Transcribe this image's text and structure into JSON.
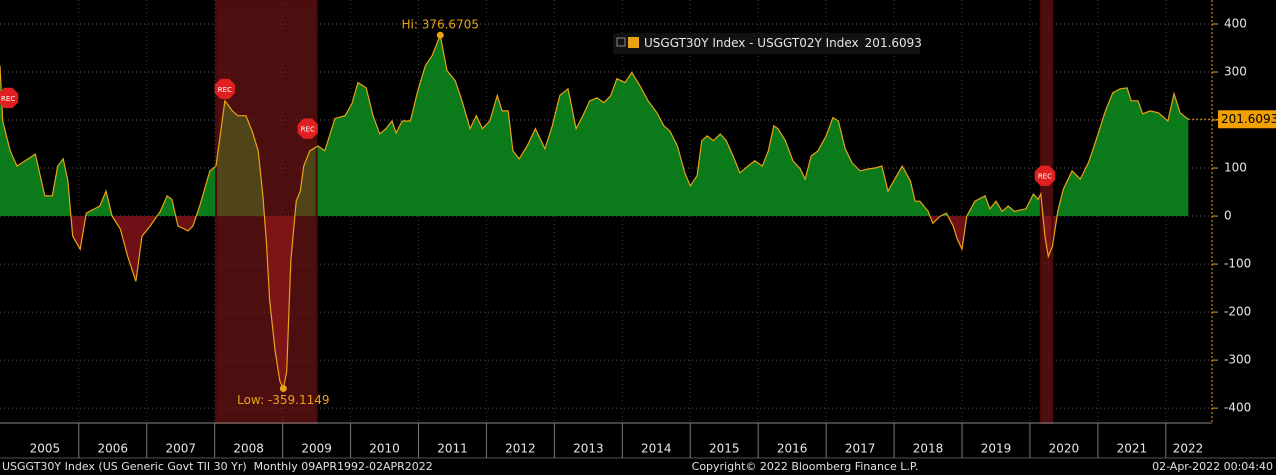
{
  "chart_data": {
    "type": "area",
    "series": [
      {
        "name": "USGGT30Y Index - USGGT02Y Index",
        "color": "#e8a317",
        "values": [
          313,
          198,
          136,
          104,
          129,
          42,
          42,
          104,
          119,
          73,
          -42,
          -69,
          6,
          21,
          52,
          0,
          -27,
          -84,
          -136,
          -42,
          -21,
          10,
          42,
          35,
          -21,
          -31,
          -21,
          21,
          94,
          104,
          167,
          240,
          219,
          209,
          209,
          177,
          136,
          42,
          -52,
          -177,
          -282,
          -344,
          -359.1149,
          -324,
          -94,
          31,
          52,
          104,
          136,
          146,
          136,
          203,
          209,
          234,
          278,
          267,
          209,
          171,
          182,
          198,
          173,
          198,
          198,
          261,
          313,
          334,
          376.6705,
          303,
          282,
          240,
          182,
          209,
          182,
          198,
          251,
          219,
          219,
          136,
          119,
          146,
          182,
          140,
          188,
          251,
          265,
          182,
          209,
          240,
          246,
          236,
          251,
          286,
          278,
          299,
          271,
          240,
          215,
          188,
          177,
          146,
          90,
          63,
          84,
          157,
          167,
          157,
          171,
          157,
          125,
          90,
          104,
          115,
          104,
          136,
          188,
          182,
          157,
          115,
          98,
          77,
          125,
          136,
          167,
          205,
          198,
          140,
          111,
          94,
          98,
          100,
          104,
          52,
          77,
          104,
          73,
          31,
          31,
          10,
          -15,
          0,
          6,
          -21,
          -48,
          -69,
          0,
          31,
          42,
          15,
          31,
          10,
          21,
          10,
          15,
          46,
          35,
          46,
          -42,
          -84,
          -63,
          10,
          56,
          94,
          77,
          111,
          157,
          219,
          257,
          265,
          267,
          240,
          240,
          213,
          219,
          215,
          198,
          255,
          215,
          201.6093
        ]
      }
    ],
    "x": [
      2004.84,
      2004.88,
      2004.99,
      2005.09,
      2005.36,
      2005.5,
      2005.61,
      2005.69,
      2005.77,
      2005.84,
      2005.91,
      2006.02,
      2006.11,
      2006.31,
      2006.4,
      2006.49,
      2006.61,
      2006.72,
      2006.84,
      2006.93,
      2007.05,
      2007.2,
      2007.3,
      2007.37,
      2007.46,
      2007.61,
      2007.68,
      2007.78,
      2007.93,
      2008.02,
      2008.08,
      2008.15,
      2008.26,
      2008.34,
      2008.46,
      2008.55,
      2008.64,
      2008.71,
      2008.76,
      2008.81,
      2008.89,
      2008.96,
      2009.01,
      2009.06,
      2009.12,
      2009.2,
      2009.26,
      2009.31,
      2009.4,
      2009.52,
      2009.62,
      2009.77,
      2009.92,
      2010.02,
      2010.11,
      2010.23,
      2010.33,
      2010.43,
      2010.52,
      2010.61,
      2010.67,
      2010.76,
      2010.88,
      2010.99,
      2011.1,
      2011.2,
      2011.32,
      2011.42,
      2011.54,
      2011.64,
      2011.76,
      2011.85,
      2011.94,
      2012.05,
      2012.16,
      2012.23,
      2012.32,
      2012.39,
      2012.48,
      2012.6,
      2012.72,
      2012.86,
      2012.97,
      2013.08,
      2013.2,
      2013.32,
      2013.42,
      2013.52,
      2013.63,
      2013.73,
      2013.83,
      2013.92,
      2014.04,
      2014.14,
      2014.26,
      2014.38,
      2014.51,
      2014.61,
      2014.7,
      2014.81,
      2014.92,
      2015.0,
      2015.1,
      2015.17,
      2015.25,
      2015.34,
      2015.44,
      2015.53,
      2015.63,
      2015.73,
      2015.85,
      2015.95,
      2016.06,
      2016.15,
      2016.23,
      2016.29,
      2016.4,
      2016.51,
      2016.62,
      2016.69,
      2016.78,
      2016.88,
      2017.0,
      2017.1,
      2017.18,
      2017.28,
      2017.38,
      2017.5,
      2017.62,
      2017.72,
      2017.82,
      2017.91,
      2018.01,
      2018.12,
      2018.24,
      2018.31,
      2018.38,
      2018.5,
      2018.57,
      2018.68,
      2018.77,
      2018.87,
      2018.93,
      2019.0,
      2019.07,
      2019.19,
      2019.34,
      2019.41,
      2019.5,
      2019.59,
      2019.68,
      2019.77,
      2019.94,
      2020.05,
      2020.12,
      2020.16,
      2020.22,
      2020.27,
      2020.33,
      2020.41,
      2020.49,
      2020.62,
      2020.74,
      2020.86,
      2020.97,
      2021.11,
      2021.22,
      2021.33,
      2021.43,
      2021.49,
      2021.59,
      2021.66,
      2021.77,
      2021.89,
      2022.03,
      2022.12,
      2022.21,
      2022.33
    ],
    "positive_color": "#0a7a1a",
    "negative_color": "#6e1016",
    "xlim": [
      2004.84,
      2022.65
    ],
    "xticks": [
      {
        "value": 2005.5,
        "label": "2005"
      },
      {
        "value": 2006.5,
        "label": "2006"
      },
      {
        "value": 2007.5,
        "label": "2007"
      },
      {
        "value": 2008.5,
        "label": "2008"
      },
      {
        "value": 2009.5,
        "label": "2009"
      },
      {
        "value": 2010.5,
        "label": "2010"
      },
      {
        "value": 2011.5,
        "label": "2011"
      },
      {
        "value": 2012.5,
        "label": "2012"
      },
      {
        "value": 2013.5,
        "label": "2013"
      },
      {
        "value": 2014.5,
        "label": "2014"
      },
      {
        "value": 2015.5,
        "label": "2015"
      },
      {
        "value": 2016.5,
        "label": "2016"
      },
      {
        "value": 2017.5,
        "label": "2017"
      },
      {
        "value": 2018.5,
        "label": "2018"
      },
      {
        "value": 2019.5,
        "label": "2019"
      },
      {
        "value": 2020.5,
        "label": "2020"
      },
      {
        "value": 2021.5,
        "label": "2021"
      },
      {
        "value": 2022.5,
        "label": "2022"
      }
    ],
    "ylim": [
      -431,
      450
    ],
    "yticks": [
      -400,
      -300,
      -200,
      -100,
      0,
      100,
      200,
      300,
      400
    ],
    "grid": true,
    "recessions": [
      [
        2008.02,
        2009.5
      ],
      [
        2020.16,
        2020.33
      ]
    ],
    "recession_markers": [
      {
        "x": 2004.96,
        "y": 246,
        "label": "REC"
      },
      {
        "x": 2008.15,
        "y": 265,
        "label": "REC"
      },
      {
        "x": 2009.37,
        "y": 182,
        "label": "REC"
      },
      {
        "x": 2020.22,
        "y": 84,
        "label": "REC"
      }
    ],
    "annotations": [
      {
        "label": "Hi: 376.6705",
        "x": 2011.32,
        "y": 376.6705,
        "position": "above"
      },
      {
        "label": "Low: -359.1149",
        "x": 2009.01,
        "y": -359.1149,
        "position": "below"
      }
    ],
    "footer": {
      "left": "USGGT30Y Index (US Generic Govt TII 30 Yr)  Monthly 09APR1992-02APR2022",
      "center": "Copyright© 2022 Bloomberg Finance L.P.",
      "right": "02-Apr-2022 00:04:40"
    }
  }
}
